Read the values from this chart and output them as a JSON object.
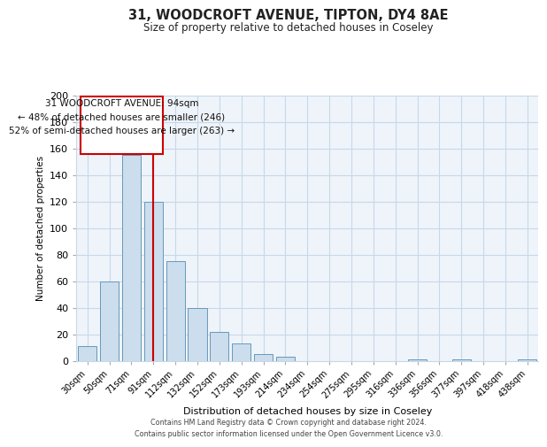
{
  "title": "31, WOODCROFT AVENUE, TIPTON, DY4 8AE",
  "subtitle": "Size of property relative to detached houses in Coseley",
  "xlabel": "Distribution of detached houses by size in Coseley",
  "ylabel": "Number of detached properties",
  "bar_labels": [
    "30sqm",
    "50sqm",
    "71sqm",
    "91sqm",
    "112sqm",
    "132sqm",
    "152sqm",
    "173sqm",
    "193sqm",
    "214sqm",
    "234sqm",
    "254sqm",
    "275sqm",
    "295sqm",
    "316sqm",
    "336sqm",
    "356sqm",
    "377sqm",
    "397sqm",
    "418sqm",
    "438sqm"
  ],
  "bar_values": [
    11,
    60,
    155,
    120,
    75,
    40,
    22,
    13,
    5,
    3,
    0,
    0,
    0,
    0,
    0,
    1,
    0,
    1,
    0,
    0,
    1
  ],
  "bar_color": "#ccdded",
  "bar_edge_color": "#6699bb",
  "ylim": [
    0,
    200
  ],
  "yticks": [
    0,
    20,
    40,
    60,
    80,
    100,
    120,
    140,
    160,
    180,
    200
  ],
  "vline_x": 3.5,
  "vline_color": "#cc0000",
  "annotation_title": "31 WOODCROFT AVENUE: 94sqm",
  "annotation_line1": "← 48% of detached houses are smaller (246)",
  "annotation_line2": "52% of semi-detached houses are larger (263) →",
  "annotation_box_color": "#ffffff",
  "annotation_box_edge": "#cc0000",
  "footer_line1": "Contains HM Land Registry data © Crown copyright and database right 2024.",
  "footer_line2": "Contains public sector information licensed under the Open Government Licence v3.0.",
  "background_color": "#ffffff",
  "grid_color": "#c8d8e8",
  "plot_bg_color": "#eef4fa"
}
